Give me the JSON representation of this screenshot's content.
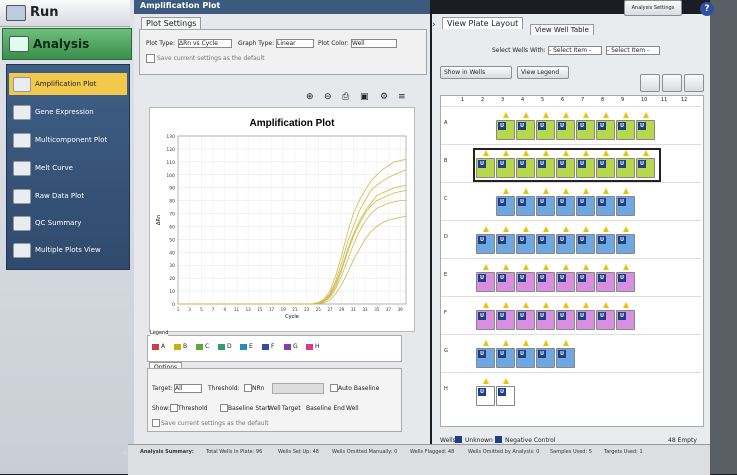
{
  "nav": {
    "run_label": "Run",
    "analysis_label": "Analysis",
    "items": [
      {
        "label": "Amplification Plot",
        "selected": true
      },
      {
        "label": "Gene Expression"
      },
      {
        "label": "Multicomponent Plot"
      },
      {
        "label": "Melt Curve"
      },
      {
        "label": "Raw Data Plot"
      },
      {
        "label": "QC Summary"
      },
      {
        "label": "Multiple Plots View"
      }
    ]
  },
  "topbar": {
    "title": "Amplification Plot",
    "analysis_settings": "Analysis Settings",
    "help": "?"
  },
  "plot_settings": {
    "tab": "Plot Settings",
    "plot_type_label": "Plot Type:",
    "plot_type_value": "ΔRn vs Cycle",
    "graph_type_label": "Graph Type:",
    "graph_type_value": "Linear",
    "plot_color_label": "Plot Color:",
    "plot_color_value": "Well",
    "save_default": "Save current settings as the default"
  },
  "chart_data": {
    "type": "line",
    "title": "Amplification Plot",
    "xlabel": "Cycle",
    "ylabel": "ΔRn",
    "xlim": [
      1,
      40
    ],
    "ylim": [
      0,
      130
    ],
    "x_ticks": [
      1,
      3,
      5,
      7,
      9,
      11,
      13,
      15,
      17,
      19,
      21,
      23,
      25,
      27,
      29,
      31,
      33,
      35,
      37,
      39
    ],
    "y_ticks": [
      0,
      10,
      20,
      30,
      40,
      50,
      60,
      70,
      80,
      90,
      100,
      110,
      120,
      130
    ],
    "grid": true,
    "series": [
      {
        "values": [
          0,
          0,
          0,
          0,
          0,
          0,
          0,
          0,
          0,
          0,
          0,
          0,
          0,
          0,
          0,
          0,
          0,
          0,
          0,
          0,
          0,
          0,
          0,
          0,
          1,
          3,
          8,
          18,
          32,
          48,
          60,
          72,
          80,
          88,
          92,
          95,
          98,
          100,
          102,
          104
        ]
      },
      {
        "values": [
          0,
          0,
          0,
          0,
          0,
          0,
          0,
          0,
          0,
          0,
          0,
          0,
          0,
          0,
          0,
          0,
          0,
          0,
          0,
          0,
          0,
          0,
          0,
          0,
          1,
          4,
          10,
          22,
          38,
          55,
          70,
          80,
          88,
          95,
          100,
          104,
          107,
          110,
          111,
          112
        ]
      },
      {
        "values": [
          0,
          0,
          0,
          0,
          0,
          0,
          0,
          0,
          0,
          0,
          0,
          0,
          0,
          0,
          0,
          0,
          0,
          0,
          0,
          0,
          0,
          0,
          0,
          0,
          0,
          2,
          6,
          14,
          26,
          40,
          52,
          62,
          70,
          76,
          80,
          82,
          84,
          86,
          87,
          88
        ]
      },
      {
        "values": [
          0,
          0,
          0,
          0,
          0,
          0,
          0,
          0,
          0,
          0,
          0,
          0,
          0,
          0,
          0,
          0,
          0,
          0,
          0,
          0,
          0,
          0,
          0,
          0,
          0,
          2,
          5,
          12,
          22,
          34,
          46,
          56,
          64,
          70,
          74,
          76,
          78,
          79,
          80,
          80
        ]
      },
      {
        "values": [
          0,
          0,
          0,
          0,
          0,
          0,
          0,
          0,
          0,
          0,
          0,
          0,
          0,
          0,
          0,
          0,
          0,
          0,
          0,
          0,
          0,
          0,
          0,
          0,
          1,
          3,
          7,
          16,
          28,
          42,
          54,
          64,
          72,
          78,
          84,
          86,
          88,
          90,
          91,
          92
        ]
      },
      {
        "values": [
          0,
          0,
          0,
          0,
          0,
          0,
          0,
          0,
          0,
          0,
          0,
          0,
          0,
          0,
          0,
          0,
          0,
          0,
          0,
          0,
          0,
          0,
          0,
          0,
          0,
          1,
          3,
          8,
          15,
          24,
          34,
          42,
          50,
          56,
          60,
          63,
          65,
          66,
          67,
          68
        ]
      }
    ],
    "series_color": "#c9b23a"
  },
  "legend": {
    "title": "Legend",
    "items": [
      {
        "label": "A",
        "color": "#d53b3b"
      },
      {
        "label": "B",
        "color": "#c7b000"
      },
      {
        "label": "C",
        "color": "#5fa83a"
      },
      {
        "label": "D",
        "color": "#2f9e68"
      },
      {
        "label": "E",
        "color": "#2a8ab8"
      },
      {
        "label": "F",
        "color": "#2f4fa3"
      },
      {
        "label": "G",
        "color": "#8b3ab5"
      },
      {
        "label": "H",
        "color": "#d53b8a"
      }
    ]
  },
  "options": {
    "tab": "Options",
    "target_label": "Target:",
    "target_value": "All",
    "threshold_label": "Threshold:",
    "nrn_label": "NRn",
    "auto_baseline": "Auto Baseline",
    "show_label": "Show:",
    "show_threshold": "Threshold",
    "show_baseline": "Baseline Start",
    "show_well": "Well",
    "show_target": "Target",
    "show_baseline_end": "Baseline End",
    "show_well2": "Well",
    "save_default": "Save current settings as the default"
  },
  "plate": {
    "tab_layout": "View Plate Layout",
    "tab_table": "View Well Table",
    "select_wells_label": "Select Wells With:",
    "select_item1": "- Select Item -",
    "select_item2": "- Select Item -",
    "show_in_wells": "Show in Wells",
    "view_legend": "View Legend",
    "columns": [
      "1",
      "2",
      "3",
      "4",
      "5",
      "6",
      "7",
      "8",
      "9",
      "10",
      "11",
      "12"
    ],
    "rows": [
      "A",
      "B",
      "C",
      "D",
      "E",
      "F",
      "G",
      "H"
    ],
    "footer": "Wells:",
    "footer_unknown": "Unknown",
    "footer_neg": "Negative Control",
    "footer_empty": "48 Empty"
  },
  "status": {
    "summary": "Analysis Summary:",
    "total": "Total Wells in Plate: 96",
    "setup": "Wells Set Up: 48",
    "manually": "Wells Omitted Manually: 0",
    "flagged": "Wells Flagged: 48",
    "by_analysis": "Wells Omitted by Analysis: 0",
    "samples": "Samples Used: 5",
    "targets": "Targets Used: 1"
  }
}
